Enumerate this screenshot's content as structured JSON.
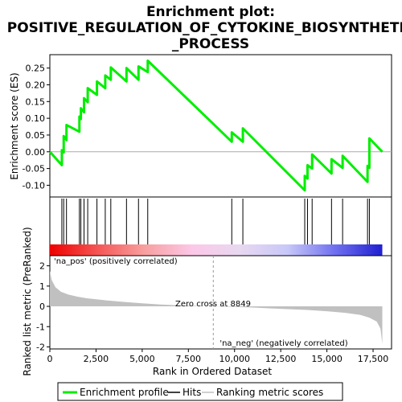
{
  "chart_data": {
    "type": "line",
    "title_line1": "Enrichment plot:",
    "title_line2": "POSITIVE_REGULATION_OF_CYTOKINE_BIOSYNTHETIC",
    "title_line3": "_PROCESS",
    "xlabel": "Rank in Ordered Dataset",
    "ylabel_top": "Enrichment score (ES)",
    "ylabel_bottom": "Ranked list metric (PreRanked)",
    "xlim": [
      0,
      18500
    ],
    "es_ylim": [
      -0.135,
      0.29
    ],
    "metric_ylim": [
      -2.1,
      2.5
    ],
    "x_ticks": [
      0,
      2500,
      5000,
      7500,
      10000,
      12500,
      15000,
      17500
    ],
    "x_tick_labels": [
      "0",
      "2,500",
      "5,000",
      "7,500",
      "10,000",
      "12,500",
      "15,000",
      "17,500"
    ],
    "es_ticks": [
      0.25,
      0.2,
      0.15,
      0.1,
      0.05,
      0.0,
      -0.05,
      -0.1
    ],
    "es_tick_labels": [
      "0.25",
      "0.20",
      "0.15",
      "0.10",
      "0.05",
      "0.00",
      "-0.05",
      "-0.10"
    ],
    "metric_ticks": [
      2,
      1,
      0,
      -1,
      -2
    ],
    "metric_tick_labels": [
      "2",
      "1",
      "0",
      "-1",
      "-2"
    ],
    "hit_positions": [
      650,
      750,
      900,
      1600,
      1680,
      1850,
      2050,
      2550,
      3000,
      3300,
      4150,
      4800,
      5300,
      9850,
      10450,
      13800,
      13950,
      14200,
      15250,
      15850,
      17200,
      17300
    ],
    "es_curve": [
      [
        0,
        0.0
      ],
      [
        650,
        -0.04
      ],
      [
        650,
        0.005
      ],
      [
        750,
        -0.002
      ],
      [
        750,
        0.047
      ],
      [
        900,
        0.035
      ],
      [
        900,
        0.08
      ],
      [
        1600,
        0.06
      ],
      [
        1600,
        0.105
      ],
      [
        1680,
        0.098
      ],
      [
        1680,
        0.13
      ],
      [
        1850,
        0.118
      ],
      [
        1850,
        0.16
      ],
      [
        2050,
        0.148
      ],
      [
        2050,
        0.19
      ],
      [
        2550,
        0.17
      ],
      [
        2550,
        0.21
      ],
      [
        3000,
        0.19
      ],
      [
        3000,
        0.228
      ],
      [
        3300,
        0.215
      ],
      [
        3300,
        0.252
      ],
      [
        4150,
        0.21
      ],
      [
        4150,
        0.25
      ],
      [
        4800,
        0.215
      ],
      [
        4800,
        0.255
      ],
      [
        5300,
        0.238
      ],
      [
        5300,
        0.272
      ],
      [
        9850,
        0.03
      ],
      [
        9850,
        0.058
      ],
      [
        10450,
        0.03
      ],
      [
        10450,
        0.07
      ],
      [
        13800,
        -0.115
      ],
      [
        13800,
        -0.072
      ],
      [
        13950,
        -0.08
      ],
      [
        13950,
        -0.04
      ],
      [
        14200,
        -0.05
      ],
      [
        14200,
        -0.008
      ],
      [
        15250,
        -0.065
      ],
      [
        15250,
        -0.022
      ],
      [
        15850,
        -0.048
      ],
      [
        15850,
        -0.012
      ],
      [
        17200,
        -0.09
      ],
      [
        17200,
        -0.042
      ],
      [
        17300,
        -0.048
      ],
      [
        17300,
        0.04
      ],
      [
        18000,
        0.0
      ]
    ],
    "metric_curve": [
      [
        0,
        1.75
      ],
      [
        100,
        1.3
      ],
      [
        300,
        0.95
      ],
      [
        600,
        0.72
      ],
      [
        1000,
        0.58
      ],
      [
        1500,
        0.48
      ],
      [
        2000,
        0.4
      ],
      [
        3000,
        0.3
      ],
      [
        4000,
        0.22
      ],
      [
        5000,
        0.15
      ],
      [
        6000,
        0.09
      ],
      [
        7000,
        0.05
      ],
      [
        8000,
        0.02
      ],
      [
        8849,
        0.0
      ],
      [
        10000,
        -0.03
      ],
      [
        11000,
        -0.06
      ],
      [
        12000,
        -0.1
      ],
      [
        13000,
        -0.14
      ],
      [
        14000,
        -0.18
      ],
      [
        15000,
        -0.24
      ],
      [
        16000,
        -0.32
      ],
      [
        16800,
        -0.42
      ],
      [
        17300,
        -0.56
      ],
      [
        17700,
        -0.75
      ],
      [
        17900,
        -1.1
      ],
      [
        18000,
        -1.85
      ]
    ],
    "zero_cross_label": "Zero cross at 8849",
    "zero_cross_x": 8849,
    "pos_label": "'na_pos' (positively correlated)",
    "neg_label": "'na_neg' (negatively correlated)",
    "colors": {
      "es_line": "#00ee00",
      "hit": "#000000",
      "metric_fill": "#c0c0c0",
      "pos_text": "#ff0000",
      "neg_text": "#0000ff",
      "bar_stops": [
        "#ee0000",
        "#f55555",
        "#f8a0a0",
        "#fbc8e8",
        "#e8d8f0",
        "#c8c8f8",
        "#7070f0",
        "#2020d0"
      ]
    },
    "legend": {
      "es_label": "Enrichment profile",
      "hits_label": "Hits",
      "metric_label": "Ranking metric scores"
    }
  }
}
